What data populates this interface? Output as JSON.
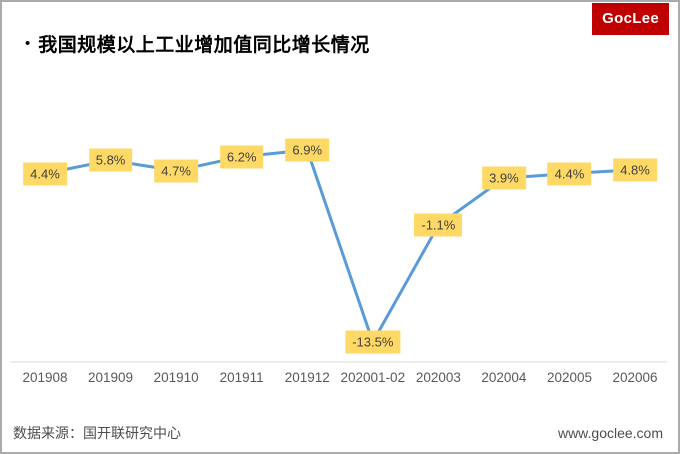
{
  "header": {
    "bullet": "•",
    "title": "我国规模以上工业增加值同比增长情况",
    "logo_text": "GocLee"
  },
  "footer": {
    "source": "数据来源：国开联研究中心",
    "website": "www.goclee.com"
  },
  "chart_data": {
    "type": "line",
    "title": "我国规模以上工业增加值同比增长情况",
    "categories": [
      "201908",
      "201909",
      "201910",
      "201911",
      "201912",
      "202001-02",
      "202003",
      "202004",
      "202005",
      "202006"
    ],
    "values": [
      4.4,
      5.8,
      4.7,
      6.2,
      6.9,
      -13.5,
      -1.1,
      3.9,
      4.4,
      4.8
    ],
    "labels": [
      "4.4%",
      "5.8%",
      "4.7%",
      "6.2%",
      "6.9%",
      "-13.5%",
      "-1.1%",
      "3.9%",
      "4.4%",
      "4.8%"
    ],
    "unit": "%",
    "ylim": [
      -15,
      10
    ],
    "grid": "off",
    "legend": "none",
    "line_color": "#5B9BD5",
    "label_bg_color": "#FFD966",
    "label_text_color": "#3F3F3F",
    "axis_line_color": "#D9D9D9",
    "axis_label_color": "#595959"
  },
  "colors": {
    "logo_bg": "#C00000",
    "page_border": "#ABABAB"
  }
}
